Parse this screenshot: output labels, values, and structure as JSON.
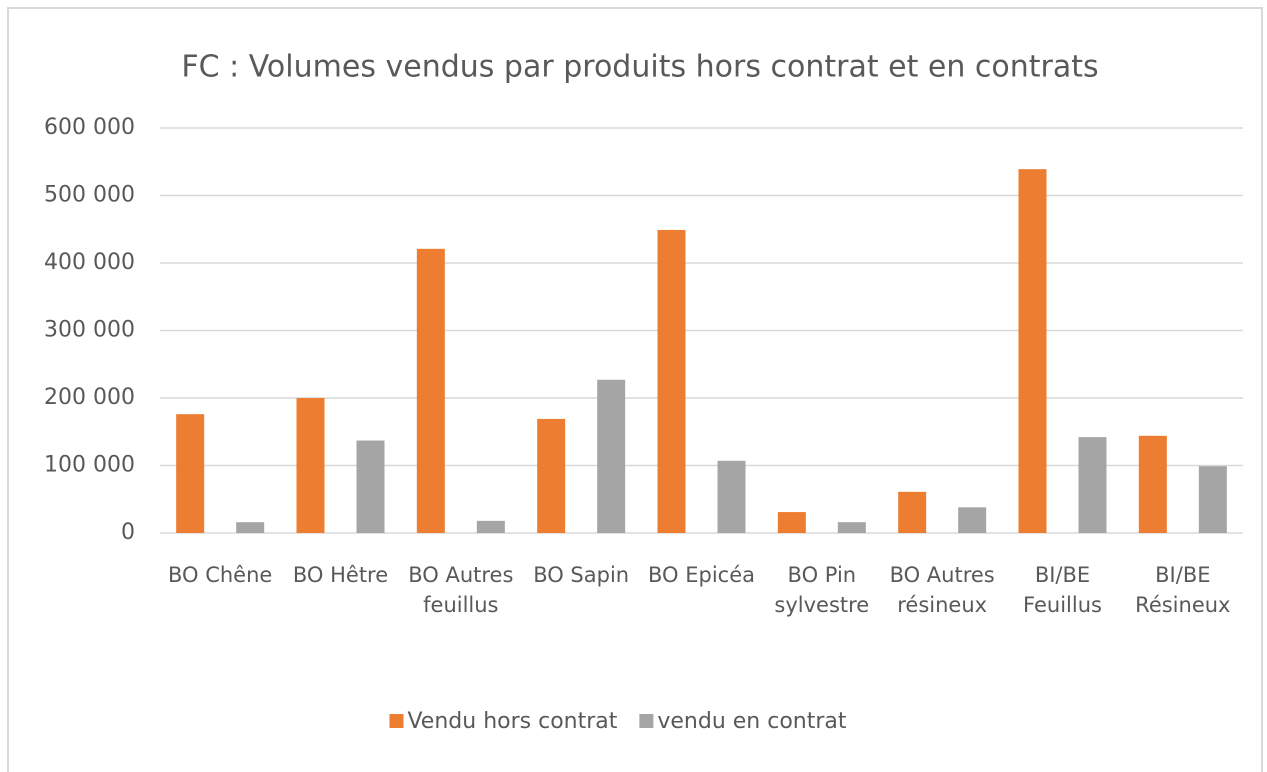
{
  "chart_data": {
    "type": "bar",
    "title": "FC : Volumes vendus par produits hors contrat et en contrats",
    "categories": [
      "BO Chêne",
      "BO Hêtre",
      "BO Autres feuillus",
      "BO Sapin",
      "BO Epicéa",
      "BO Pin sylvestre",
      "BO Autres résineux",
      "BI/BE Feuillus",
      "BI/BE Résineux"
    ],
    "series": [
      {
        "name": "Vendu hors contrat",
        "color": "#ed7d31",
        "values": [
          176000,
          200000,
          421000,
          169000,
          449000,
          31000,
          61000,
          539000,
          144000
        ]
      },
      {
        "name": "vendu en contrat",
        "color": "#a5a5a5",
        "values": [
          16000,
          137000,
          18000,
          227000,
          107000,
          16000,
          38000,
          142000,
          99000
        ]
      }
    ],
    "ylim": [
      0,
      600000
    ],
    "yticks": [
      0,
      {
        "value": 100000,
        "label": "100 000"
      },
      {
        "value": 200000,
        "label": "200 000"
      },
      {
        "value": 300000,
        "label": "300 000"
      },
      {
        "value": 400000,
        "label": "400 000"
      },
      {
        "value": 500000,
        "label": "500 000"
      },
      {
        "value": 600000,
        "label": "600 000"
      }
    ],
    "grid": true,
    "legend": "bottom"
  }
}
